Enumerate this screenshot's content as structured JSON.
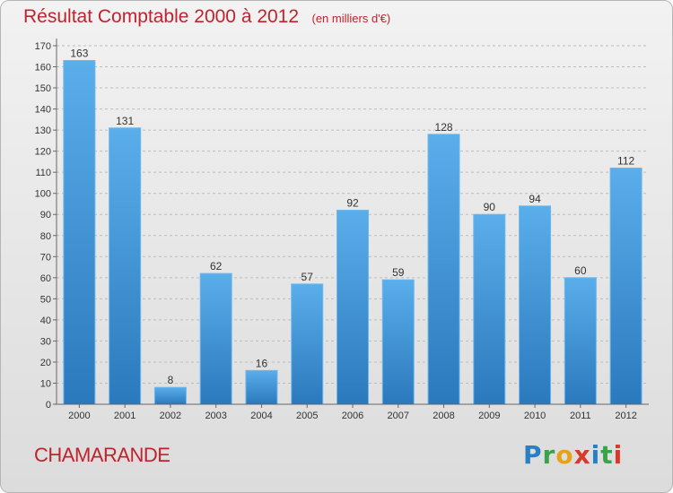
{
  "chart_data": {
    "type": "bar",
    "title": "Résultat Comptable 2000 à 2012",
    "subtitle": "(en milliers d'€)",
    "categories": [
      "2000",
      "2001",
      "2002",
      "2003",
      "2004",
      "2005",
      "2006",
      "2007",
      "2008",
      "2009",
      "2010",
      "2011",
      "2012"
    ],
    "values": [
      163,
      131,
      8,
      62,
      16,
      57,
      92,
      59,
      128,
      90,
      94,
      60,
      112
    ],
    "ylim": [
      0,
      170
    ],
    "ytick_step": 10,
    "grid": "y-dashed",
    "xlabel": "",
    "ylabel": "",
    "bar_color": "#4f9fe0"
  },
  "footer": {
    "commune": "CHAMARANDE",
    "logo_letters": [
      {
        "ch": "P",
        "color": "#2a7fc4"
      },
      {
        "ch": "r",
        "color": "#3aa34a"
      },
      {
        "ch": "o",
        "color": "#e8a21a"
      },
      {
        "ch": "x",
        "color": "#d63a2b"
      },
      {
        "ch": "i",
        "color": "#2a7fc4"
      },
      {
        "ch": "t",
        "color": "#3aa34a"
      },
      {
        "ch": "i",
        "color": "#d63a2b"
      }
    ]
  }
}
